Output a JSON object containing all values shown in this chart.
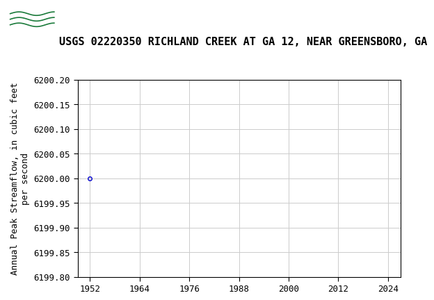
{
  "title": "USGS 02220350 RICHLAND CREEK AT GA 12, NEAR GREENSBORO, GA",
  "ylabel_line1": "Annual Peak Streamflow, in cubic feet",
  "ylabel_line2": "per second",
  "data_x": [
    1952
  ],
  "data_y": [
    6200.0
  ],
  "xlim": [
    1949,
    2027
  ],
  "ylim": [
    6199.8,
    6200.2
  ],
  "xticks": [
    1952,
    1964,
    1976,
    1988,
    2000,
    2012,
    2024
  ],
  "yticks": [
    6199.8,
    6199.85,
    6199.9,
    6199.95,
    6200.0,
    6200.05,
    6200.1,
    6200.15,
    6200.2
  ],
  "ytick_labels": [
    "6199.80",
    "6199.85",
    "6199.90",
    "6199.95",
    "6200.00",
    "6200.05",
    "6200.10",
    "6200.15",
    "6200.20"
  ],
  "marker_color": "#0000cc",
  "marker_style": "o",
  "marker_size": 4,
  "grid_color": "#cccccc",
  "bg_color": "#ffffff",
  "header_bg_color": "#1a7a3a",
  "header_text_color": "#ffffff",
  "title_fontsize": 11,
  "axis_label_fontsize": 9,
  "tick_fontsize": 9,
  "font_family": "monospace"
}
